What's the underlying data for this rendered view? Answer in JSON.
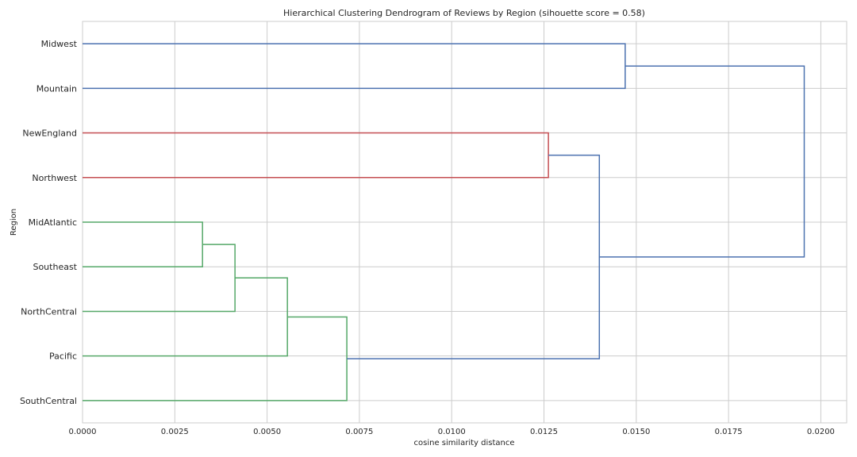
{
  "chart_data": {
    "type": "dendrogram",
    "orientation": "left",
    "title": "Hierarchical Clustering Dendrogram of Reviews by Region (sihouette score = 0.58)",
    "xlabel": "cosine similarity distance",
    "ylabel": "Region",
    "xlim": [
      0,
      0.0207
    ],
    "xticks": [
      0.0,
      0.0025,
      0.005,
      0.0075,
      0.01,
      0.0125,
      0.015,
      0.0175,
      0.02
    ],
    "xtick_labels": [
      "0.0000",
      "0.0025",
      "0.0050",
      "0.0075",
      "0.0100",
      "0.0125",
      "0.0150",
      "0.0175",
      "0.0200"
    ],
    "grid": true,
    "colors": {
      "cluster_green": "#55a868",
      "cluster_red": "#c44e52",
      "above_threshold": "#4c72b0"
    },
    "leaves": [
      "Midwest",
      "Mountain",
      "NewEngland",
      "Northwest",
      "MidAtlantic",
      "Southeast",
      "NorthCentral",
      "Pacific",
      "SouthCentral"
    ],
    "merges": [
      {
        "left": "MidAtlantic",
        "right": "Southeast",
        "distance": 0.00325,
        "color": "cluster_green"
      },
      {
        "left": "m0",
        "right": "NorthCentral",
        "distance": 0.00413,
        "color": "cluster_green"
      },
      {
        "left": "m1",
        "right": "Pacific",
        "distance": 0.00555,
        "color": "cluster_green"
      },
      {
        "left": "m2",
        "right": "SouthCentral",
        "distance": 0.00716,
        "color": "cluster_green"
      },
      {
        "left": "NewEngland",
        "right": "Northwest",
        "distance": 0.01262,
        "color": "cluster_red"
      },
      {
        "left": "m4",
        "right": "m3",
        "distance": 0.014,
        "color": "above_threshold"
      },
      {
        "left": "Midwest",
        "right": "Mountain",
        "distance": 0.0147,
        "color": "above_threshold"
      },
      {
        "left": "m6",
        "right": "m5",
        "distance": 0.01955,
        "color": "above_threshold"
      }
    ]
  }
}
